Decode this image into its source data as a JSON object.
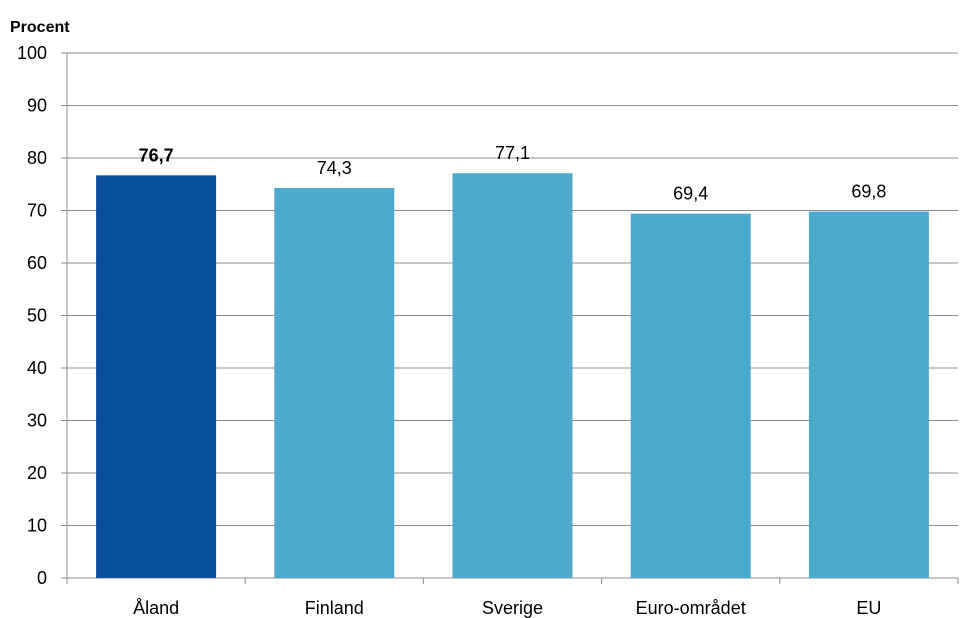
{
  "chart_data": {
    "type": "bar",
    "ylabel": "Procent",
    "ylim": [
      0,
      100
    ],
    "yticks": [
      0,
      10,
      20,
      30,
      40,
      50,
      60,
      70,
      80,
      90,
      100
    ],
    "grid": true,
    "categories": [
      "Åland",
      "Finland",
      "Sverige",
      "Euro-området",
      "EU"
    ],
    "values": [
      76.7,
      74.3,
      77.1,
      69.4,
      69.8
    ],
    "value_labels": [
      "76,7",
      "74,3",
      "77,1",
      "69,4",
      "69,8"
    ],
    "highlight_index": 0,
    "colors": {
      "highlight": "#0a4f9e",
      "default": "#4daacc",
      "grid": "#8c8c8c",
      "axis": "#8c8c8c"
    }
  }
}
